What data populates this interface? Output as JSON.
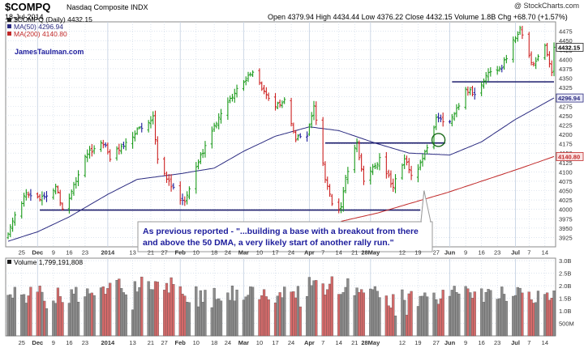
{
  "header": {
    "ticker": "$COMPQ",
    "company": "Nasdaq Composite INDX",
    "date": "18-Jul-2014",
    "credit": "@ StockCharts.com",
    "ohlc": "Open 4379.94  High 4434.44  Low 4376.22  Close 4432.15  Volume 1.8B  Chg +68.70 (+1.57%)"
  },
  "legend": {
    "price": "$COMPQ (Daily) 4432.15",
    "ma50": "MA(50) 4296.94",
    "ma200": "MA(200) 4140.80",
    "watermark": "JamesTaulman.com",
    "volume": "Volume 1,799,191,808"
  },
  "colors": {
    "up": "#1a9a1a",
    "down": "#cc2020",
    "neutral": "#1c1c9c",
    "ma50": "#2a2a80",
    "ma200": "#c02828",
    "grid": "#c8d4e4",
    "level_line": "#1c1c6c",
    "callout_text": "#1c1c9c",
    "volume_up": "#8c8c8c",
    "volume_down": "#d46a6a"
  },
  "annotation": {
    "lines": [
      "As previous reported - \"...building a base with a breakout from there",
      "and above the 50 DMA, a very likely start of another rally run.\""
    ]
  },
  "chart_data": [
    {
      "type": "ohlc",
      "title": "$COMPQ (Daily) 4432.15",
      "y_range": [
        3900,
        4500
      ],
      "y_ticks": [
        3925,
        3950,
        3975,
        4000,
        4025,
        4050,
        4075,
        4100,
        4125,
        4150,
        4175,
        4200,
        4225,
        4250,
        4275,
        4300,
        4325,
        4350,
        4375,
        4400,
        4425,
        4450,
        4475
      ],
      "y_tick_labels": [
        "3925",
        "3950",
        "3975",
        "4000",
        "4025",
        "4050",
        "4075",
        "4100",
        "4125",
        "4150",
        "4175",
        "4200",
        "4225",
        "4250",
        "4275",
        "4300",
        "4325",
        "4350",
        "4375",
        "4400",
        "4425",
        "4450",
        "4475"
      ],
      "x_start": "2013-11-19",
      "x_end": "2014-07-18",
      "x_tick_labels": [
        "25",
        "Dec",
        "9",
        "16",
        "23",
        "2014",
        "13",
        "21",
        "27",
        "Feb",
        "10",
        "18",
        "24",
        "Mar",
        "10",
        "17",
        "24",
        "Apr",
        "7",
        "14",
        "21",
        "28May",
        "12",
        "19",
        "27",
        "Jun",
        "9",
        "16",
        "23",
        "Jul",
        "7",
        "14"
      ],
      "x_tick_dates": [
        "2013-11-25",
        "2013-12-02",
        "2013-12-09",
        "2013-12-16",
        "2013-12-23",
        "2014-01-02",
        "2014-01-13",
        "2014-01-21",
        "2014-01-27",
        "2014-02-03",
        "2014-02-10",
        "2014-02-18",
        "2014-02-24",
        "2014-03-03",
        "2014-03-10",
        "2014-03-17",
        "2014-03-24",
        "2014-04-01",
        "2014-04-07",
        "2014-04-14",
        "2014-04-21",
        "2014-04-28",
        "2014-05-12",
        "2014-05-19",
        "2014-05-27",
        "2014-06-02",
        "2014-06-09",
        "2014-06-16",
        "2014-06-23",
        "2014-07-01",
        "2014-07-07",
        "2014-07-14"
      ],
      "price_path": [
        [
          "2013-11-19",
          3930
        ],
        [
          "2013-11-22",
          3985
        ],
        [
          "2013-11-27",
          4040
        ],
        [
          "2013-12-05",
          4030
        ],
        [
          "2013-12-10",
          4060
        ],
        [
          "2013-12-13",
          4000
        ],
        [
          "2013-12-18",
          4060
        ],
        [
          "2013-12-24",
          4150
        ],
        [
          "2013-12-31",
          4175
        ],
        [
          "2014-01-03",
          4140
        ],
        [
          "2014-01-08",
          4165
        ],
        [
          "2014-01-15",
          4210
        ],
        [
          "2014-01-22",
          4245
        ],
        [
          "2014-01-24",
          4130
        ],
        [
          "2014-01-29",
          4070
        ],
        [
          "2014-02-05",
          4015
        ],
        [
          "2014-02-10",
          4115
        ],
        [
          "2014-02-20",
          4245
        ],
        [
          "2014-02-26",
          4300
        ],
        [
          "2014-03-05",
          4355
        ],
        [
          "2014-03-07",
          4365
        ],
        [
          "2014-03-12",
          4310
        ],
        [
          "2014-03-17",
          4280
        ],
        [
          "2014-03-21",
          4290
        ],
        [
          "2014-03-26",
          4190
        ],
        [
          "2014-03-31",
          4195
        ],
        [
          "2014-04-03",
          4270
        ],
        [
          "2014-04-08",
          4080
        ],
        [
          "2014-04-11",
          4015
        ],
        [
          "2014-04-15",
          4000
        ],
        [
          "2014-04-17",
          4090
        ],
        [
          "2014-04-22",
          4175
        ],
        [
          "2014-04-25",
          4075
        ],
        [
          "2014-05-02",
          4135
        ],
        [
          "2014-05-08",
          4060
        ],
        [
          "2014-05-13",
          4135
        ],
        [
          "2014-05-16",
          4090
        ],
        [
          "2014-05-21",
          4130
        ],
        [
          "2014-05-27",
          4240
        ],
        [
          "2014-06-03",
          4240
        ],
        [
          "2014-06-09",
          4320
        ],
        [
          "2014-06-13",
          4310
        ],
        [
          "2014-06-20",
          4370
        ],
        [
          "2014-06-25",
          4380
        ],
        [
          "2014-07-03",
          4485
        ],
        [
          "2014-07-08",
          4390
        ],
        [
          "2014-07-10",
          4395
        ],
        [
          "2014-07-14",
          4440
        ],
        [
          "2014-07-17",
          4365
        ],
        [
          "2014-07-18",
          4432.15
        ]
      ],
      "ma50_path": [
        [
          "2013-11-19",
          3915
        ],
        [
          "2013-12-02",
          3940
        ],
        [
          "2013-12-16",
          3980
        ],
        [
          "2014-01-02",
          4040
        ],
        [
          "2014-01-15",
          4080
        ],
        [
          "2014-02-03",
          4095
        ],
        [
          "2014-02-18",
          4110
        ],
        [
          "2014-03-03",
          4155
        ],
        [
          "2014-03-17",
          4195
        ],
        [
          "2014-04-01",
          4220
        ],
        [
          "2014-04-14",
          4210
        ],
        [
          "2014-05-01",
          4175
        ],
        [
          "2014-05-15",
          4150
        ],
        [
          "2014-06-02",
          4145
        ],
        [
          "2014-06-16",
          4180
        ],
        [
          "2014-07-01",
          4240
        ],
        [
          "2014-07-18",
          4296.94
        ]
      ],
      "ma200_path": [
        [
          "2014-04-15",
          3968
        ],
        [
          "2014-05-01",
          3990
        ],
        [
          "2014-05-15",
          4015
        ],
        [
          "2014-06-01",
          4045
        ],
        [
          "2014-06-16",
          4075
        ],
        [
          "2014-07-01",
          4105
        ],
        [
          "2014-07-18",
          4140.8
        ]
      ],
      "ma50_last": 4296.94,
      "ma200_last": 4140.8,
      "last_close": 4432.15,
      "level_lines": [
        {
          "value": 3998,
          "from": "2013-12-03",
          "to": "2014-05-20"
        },
        {
          "value": 4177,
          "from": "2014-04-08",
          "to": "2014-05-31"
        },
        {
          "value": 4340,
          "from": "2014-06-03",
          "to": "2014-07-18"
        }
      ],
      "highlight": {
        "date": "2014-05-28",
        "value": 4185
      },
      "grid": true
    },
    {
      "type": "bar",
      "title": "Volume 1,799,191,808",
      "y_range": [
        0,
        3.1
      ],
      "y_ticks": [
        0.5,
        1,
        1.5,
        2,
        2.5,
        3
      ],
      "y_tick_labels": [
        "500M",
        "1.0B",
        "1.5B",
        "2.0B",
        "2.5B",
        "3.0B"
      ],
      "bar_count": 168,
      "volume_last": 1.8,
      "grid": true
    }
  ]
}
